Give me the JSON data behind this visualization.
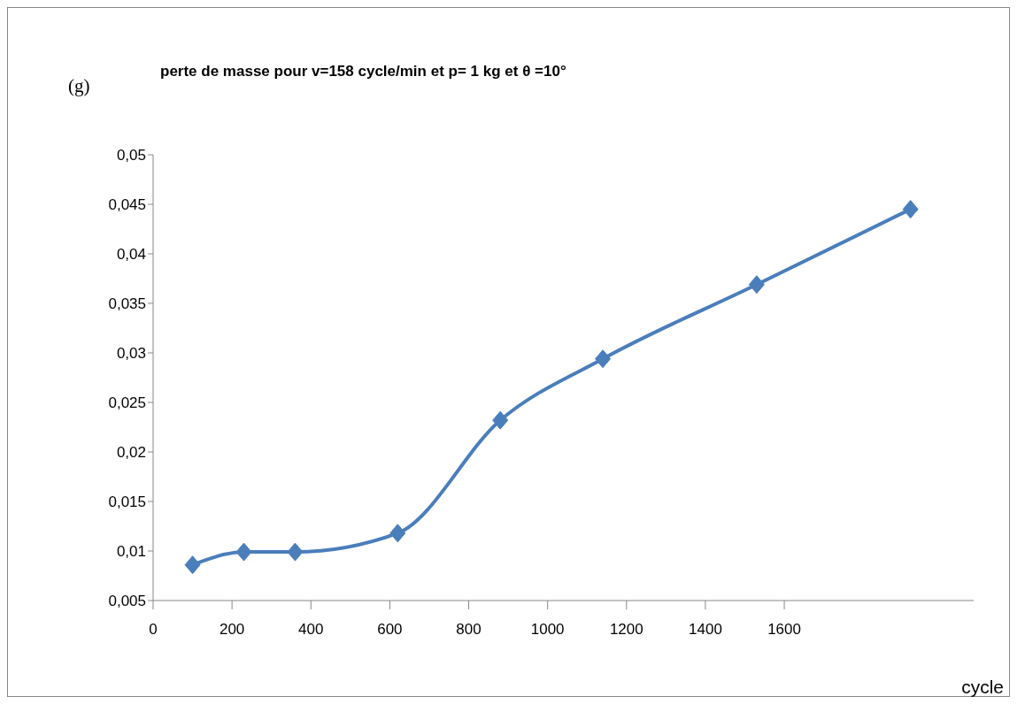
{
  "chart_data": {
    "type": "line",
    "title": "perte de masse pour v=158 cycle/min et p= 1 kg et θ =10°",
    "ylabel": "(g)",
    "xlabel": "cycle",
    "x": [
      100,
      230,
      360,
      620,
      880,
      1140,
      1530,
      1920
    ],
    "series": [
      {
        "color": "#4a7ebb",
        "values": [
          0.0086,
          0.0099,
          0.0099,
          0.0118,
          0.0232,
          0.0294,
          0.0369,
          0.0445
        ]
      }
    ],
    "xlim": [
      0,
      2080
    ],
    "xticks": [
      0,
      200,
      400,
      600,
      800,
      1000,
      1200,
      1400,
      1600
    ],
    "ylim": [
      0.005,
      0.05
    ],
    "yticks": [
      {
        "value": 0.005,
        "label": "0,005"
      },
      {
        "value": 0.01,
        "label": "0,01"
      },
      {
        "value": 0.015,
        "label": "0,015"
      },
      {
        "value": 0.02,
        "label": "0,02"
      },
      {
        "value": 0.025,
        "label": "0,025"
      },
      {
        "value": 0.03,
        "label": "0,03"
      },
      {
        "value": 0.035,
        "label": "0,035"
      },
      {
        "value": 0.04,
        "label": "0,04"
      },
      {
        "value": 0.045,
        "label": "0,045"
      },
      {
        "value": 0.05,
        "label": "0,05"
      }
    ],
    "grid": false,
    "legend": false,
    "marker": "diamond",
    "line_style": "solid"
  }
}
